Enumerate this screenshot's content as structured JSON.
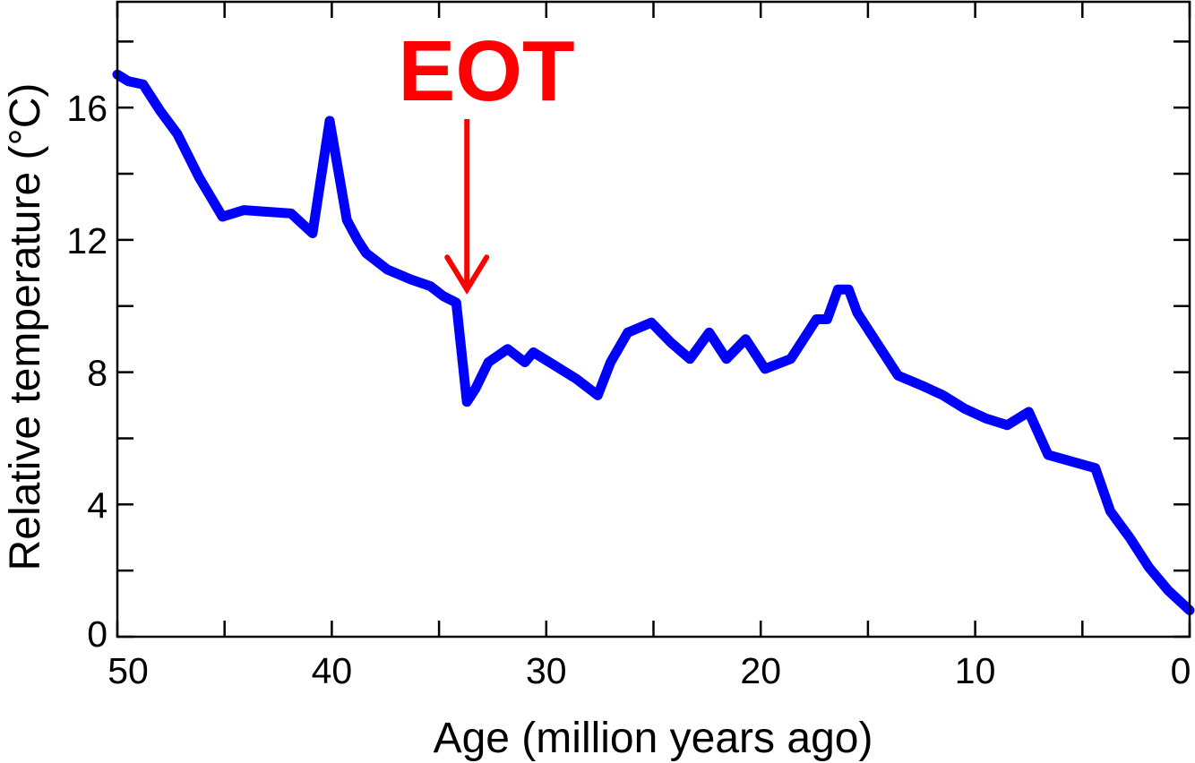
{
  "chart_data": {
    "type": "line",
    "title": "",
    "xlabel": "Age (million years ago)",
    "ylabel": "Relative temperature (°C)",
    "xlim": [
      50,
      0
    ],
    "ylim": [
      0,
      19.2
    ],
    "x_reversed": true,
    "grid": false,
    "legend": "none",
    "x_ticks": [
      50,
      40,
      30,
      20,
      10,
      0
    ],
    "x_ticklabels": [
      "50",
      "40",
      "30",
      "20",
      "10",
      "0"
    ],
    "x_minor_ticks": [
      45,
      35,
      25,
      15,
      5
    ],
    "y_ticks": [
      0,
      4,
      8,
      12,
      16
    ],
    "y_ticklabels": [
      "0",
      "4",
      "8",
      "12",
      "16"
    ],
    "y_minor_ticks": [
      2,
      6,
      10,
      14,
      18
    ],
    "series_color": "#0000ff",
    "series": [
      {
        "x": [
          50.0,
          49.5,
          48.8,
          48.0,
          47.2,
          46.2,
          45.1,
          44.1,
          43.0,
          41.9,
          40.9,
          40.1,
          39.3,
          38.8,
          38.4,
          37.4,
          36.3,
          35.4,
          34.8,
          34.2,
          33.7,
          33.3,
          32.7,
          31.8,
          31.0,
          30.6,
          29.6,
          28.6,
          27.6,
          27.0,
          26.2,
          25.1,
          24.2,
          23.3,
          22.4,
          21.6,
          20.7,
          19.8,
          18.6,
          17.4,
          16.9,
          16.4,
          15.9,
          15.5,
          14.8,
          13.6,
          12.5,
          11.5,
          10.5,
          9.5,
          8.5,
          7.5,
          6.6,
          5.5,
          4.4,
          3.7,
          2.8,
          1.9,
          1.0,
          0.0
        ],
        "y": [
          17.0,
          16.8,
          16.7,
          15.9,
          15.2,
          13.9,
          12.7,
          12.9,
          12.85,
          12.8,
          12.2,
          15.6,
          12.6,
          12.0,
          11.6,
          11.1,
          10.8,
          10.6,
          10.3,
          10.1,
          7.1,
          7.5,
          8.3,
          8.7,
          8.3,
          8.6,
          8.2,
          7.8,
          7.3,
          8.3,
          9.2,
          9.5,
          8.9,
          8.4,
          9.2,
          8.4,
          9.0,
          8.1,
          8.4,
          9.6,
          9.6,
          10.5,
          10.5,
          9.8,
          9.1,
          7.9,
          7.6,
          7.3,
          6.9,
          6.6,
          6.4,
          6.8,
          5.5,
          5.3,
          5.1,
          3.8,
          3.0,
          2.1,
          1.4,
          0.8
        ]
      }
    ],
    "annotations": [
      {
        "text": "EOT",
        "x": 33.7,
        "y_arrow_tip": 10.5,
        "color": "#ff0000"
      }
    ]
  }
}
